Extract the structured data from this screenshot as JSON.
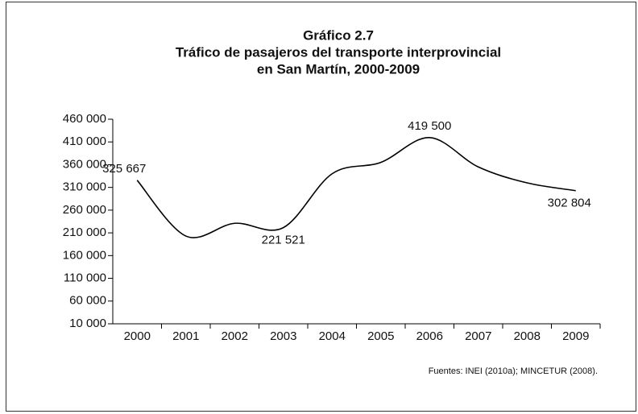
{
  "chart_data": {
    "type": "line",
    "supertitle": "Gráfico 2.7",
    "title": [
      "Tráfico de pasajeros del transporte interprovincial",
      "en San Martín, 2000-2009"
    ],
    "source": "Fuentes: INEI (2010a); MINCETUR (2008).",
    "categories": [
      "2000",
      "2001",
      "2002",
      "2003",
      "2004",
      "2005",
      "2006",
      "2007",
      "2008",
      "2009"
    ],
    "series": [
      {
        "color": "#000000",
        "values": [
          325667,
          203000,
          231000,
          221521,
          340000,
          365000,
          419500,
          355000,
          320000,
          302804
        ],
        "value_labels": [
          "325 667",
          null,
          null,
          "221 521",
          null,
          null,
          "419 500",
          null,
          null,
          "302 804"
        ]
      }
    ],
    "ylim": [
      10000,
      460000
    ],
    "yticks": [
      {
        "value": 10000,
        "label": "10 000"
      },
      {
        "value": 60000,
        "label": "60 000"
      },
      {
        "value": 110000,
        "label": "110 000"
      },
      {
        "value": 160000,
        "label": "160 000"
      },
      {
        "value": 210000,
        "label": "210 000"
      },
      {
        "value": 260000,
        "label": "260 000"
      },
      {
        "value": 310000,
        "label": "310 000"
      },
      {
        "value": 360000,
        "label": "360 000"
      },
      {
        "value": 410000,
        "label": "410 000"
      },
      {
        "value": 460000,
        "label": "460 000"
      }
    ]
  }
}
